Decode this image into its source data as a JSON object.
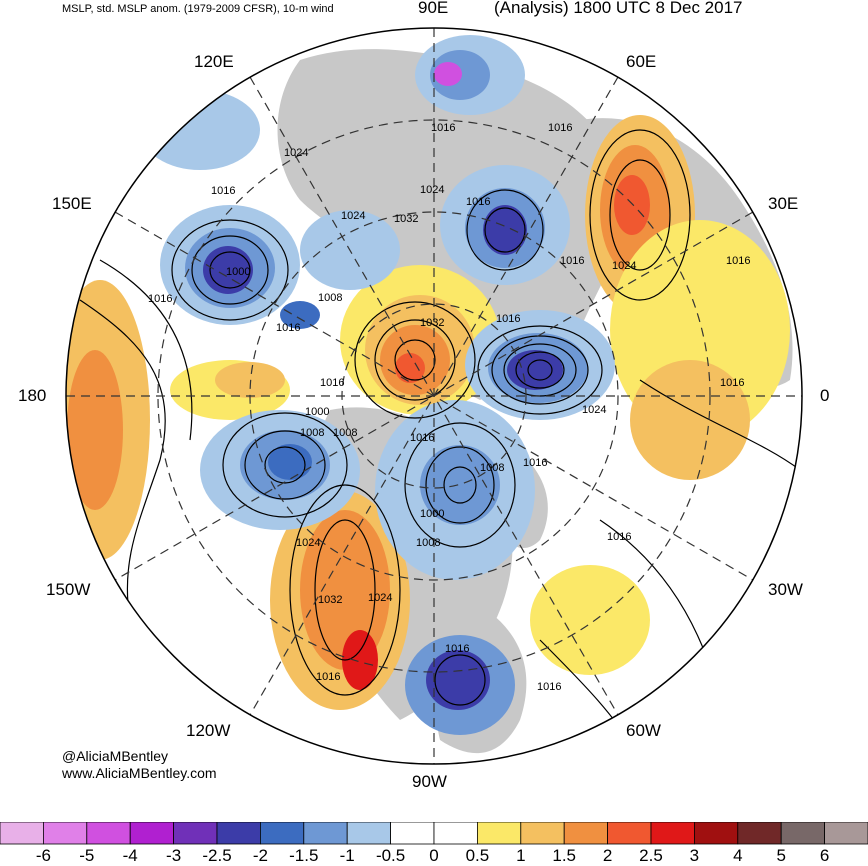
{
  "header": {
    "product": "MSLP, std. MSLP anom. (1979-2009 CFSR), 10-m wind",
    "valid": "(Analysis) 1800 UTC 8 Dec 2017"
  },
  "longitude_labels": {
    "e90": "90E",
    "e60": "60E",
    "e30": "30E",
    "deg0": "0",
    "w30": "30W",
    "w60": "60W",
    "w90": "90W",
    "w120": "120W",
    "w150": "150W",
    "deg180": "180",
    "e150": "150E",
    "e120": "120E"
  },
  "isobar_labels": [
    "1016",
    "1016",
    "1024",
    "1016",
    "1024",
    "1032",
    "1016",
    "1024",
    "1016",
    "1000",
    "1016",
    "1016",
    "1008",
    "1032",
    "1016",
    "1016",
    "1024",
    "1016",
    "1024",
    "1016",
    "1008",
    "1000",
    "1008",
    "1016",
    "1008",
    "1016",
    "1000",
    "1008",
    "1024",
    "1016",
    "1032",
    "1024",
    "1016",
    "1016",
    "1016"
  ],
  "colors": {
    "land": "#c8c8c8",
    "ocean": "#ffffff",
    "contour": "#000000"
  },
  "colorbar": {
    "ticks": [
      "-6",
      "-5",
      "-4",
      "-3",
      "-2.5",
      "-2",
      "-1.5",
      "-1",
      "-0.5",
      "0",
      "0.5",
      "1",
      "1.5",
      "2",
      "2.5",
      "3",
      "4",
      "5",
      "6"
    ],
    "bins": [
      "#e8b0e8",
      "#e080e8",
      "#d050e0",
      "#b020d0",
      "#7030b8",
      "#3c3ca8",
      "#3c6cc0",
      "#6e98d4",
      "#a8c8e8",
      "#ffffff",
      "#ffffff",
      "#fbe868",
      "#f4c060",
      "#f09040",
      "#f05830",
      "#e01818",
      "#a01010",
      "#702828",
      "#786868",
      "#a89898"
    ]
  },
  "credits": {
    "handle": "@AliciaMBentley",
    "site": "www.AliciaMBentley.com"
  }
}
